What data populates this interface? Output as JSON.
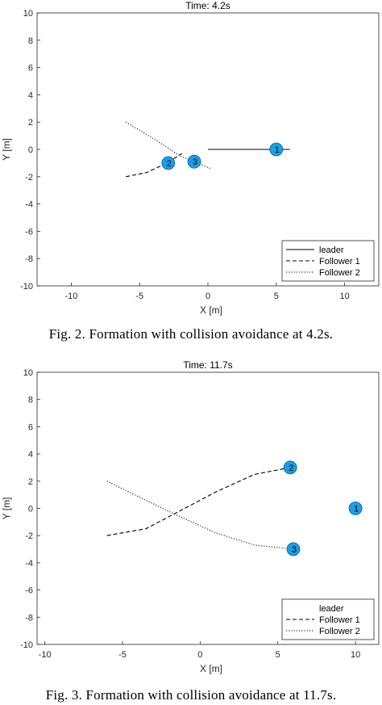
{
  "chart_data": [
    {
      "type": "line",
      "title": "Time: 4.2s",
      "xlabel": "X [m]",
      "ylabel": "Y [m]",
      "xlim": [
        -12.5,
        12.5
      ],
      "ylim": [
        -10,
        10
      ],
      "xticks": [
        -10,
        -5,
        0,
        5,
        10
      ],
      "yticks": [
        -10,
        -8,
        -6,
        -4,
        -2,
        0,
        2,
        4,
        6,
        8,
        10
      ],
      "grid": false,
      "legend_position": "bottom-right",
      "series": [
        {
          "name": "leader",
          "style": "solid",
          "x": [
            0,
            6
          ],
          "y": [
            0,
            0
          ]
        },
        {
          "name": "Follower 1",
          "style": "dashed",
          "x": [
            -6,
            -4.5,
            -3,
            -1.9
          ],
          "y": [
            -2,
            -1.7,
            -1,
            -0.3
          ]
        },
        {
          "name": "Follower 2",
          "style": "dotted",
          "x": [
            -6,
            -4,
            -2,
            0.2
          ],
          "y": [
            2,
            0.8,
            -0.5,
            -1.4
          ]
        }
      ],
      "robots": [
        {
          "label": "1",
          "x": 5,
          "y": 0
        },
        {
          "label": "2",
          "x": -2.9,
          "y": -1
        },
        {
          "label": "3",
          "x": -1,
          "y": -0.9
        }
      ]
    },
    {
      "type": "line",
      "title": "Time: 11.7s",
      "xlabel": "X [m]",
      "ylabel": "Y [m]",
      "xlim": [
        -10.5,
        11.5
      ],
      "ylim": [
        -10,
        10
      ],
      "xticks": [
        -10,
        -5,
        0,
        5,
        10
      ],
      "yticks": [
        -10,
        -8,
        -6,
        -4,
        -2,
        0,
        2,
        4,
        6,
        8,
        10
      ],
      "grid": false,
      "legend_position": "bottom-right",
      "series": [
        {
          "name": "leader",
          "style": "solid",
          "x": [],
          "y": []
        },
        {
          "name": "Follower 1",
          "style": "dashed",
          "x": [
            -6,
            -3.5,
            -1.5,
            1,
            3.5,
            5.8
          ],
          "y": [
            -2,
            -1.5,
            -0.3,
            1.2,
            2.5,
            3
          ]
        },
        {
          "name": "Follower 2",
          "style": "dotted",
          "x": [
            -6,
            -3.5,
            -1.5,
            1,
            3.5,
            6
          ],
          "y": [
            2,
            0.6,
            -0.5,
            -1.8,
            -2.7,
            -3
          ]
        }
      ],
      "robots": [
        {
          "label": "1",
          "x": 10,
          "y": 0
        },
        {
          "label": "2",
          "x": 5.8,
          "y": 3
        },
        {
          "label": "3",
          "x": 6,
          "y": -3
        }
      ]
    }
  ],
  "captions": [
    "Fig. 2.  Formation with collision avoidance at 4.2s.",
    "Fig. 3.  Formation with collision avoidance at 11.7s."
  ],
  "colors": {
    "robot_fill": "#1a9fe6",
    "robot_stroke": "#0a5e99",
    "axis": "#262626"
  }
}
